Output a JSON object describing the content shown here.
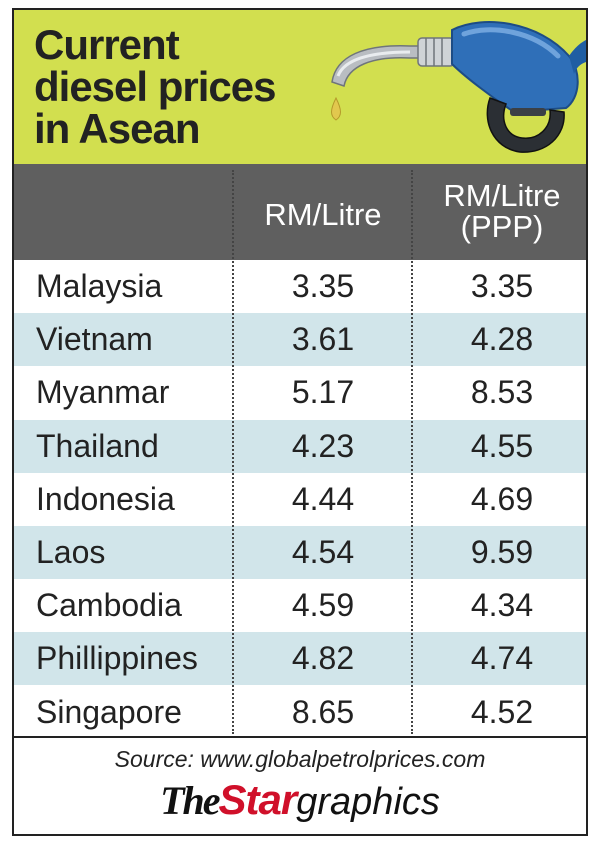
{
  "title_lines": [
    "Current",
    "diesel prices",
    "in Asean"
  ],
  "colors": {
    "header_bg": "#d2df4f",
    "column_header_bg": "#5f5f5f",
    "alt_row_bg": "#d1e5ea",
    "nozzle_blue": "#2f6fb8",
    "brand_red": "#d0102a"
  },
  "icons": [
    "fuel-nozzle-icon"
  ],
  "chart_data": {
    "type": "table",
    "title": "Current diesel prices in Asean",
    "columns": [
      "",
      "RM/Litre",
      "RM/Litre (PPP)"
    ],
    "column_header_lines": {
      "c1": [
        "RM/Litre"
      ],
      "c2": [
        "RM/Litre",
        "(PPP)"
      ]
    },
    "rows": [
      [
        "Malaysia",
        "3.35",
        "3.35"
      ],
      [
        "Vietnam",
        "3.61",
        "4.28"
      ],
      [
        "Myanmar",
        "5.17",
        "8.53"
      ],
      [
        "Thailand",
        "4.23",
        "4.55"
      ],
      [
        "Indonesia",
        "4.44",
        "4.69"
      ],
      [
        "Laos",
        "4.54",
        "9.59"
      ],
      [
        "Cambodia",
        "4.59",
        "4.34"
      ],
      [
        "Phillippines",
        "4.82",
        "4.74"
      ],
      [
        "Singapore",
        "8.65",
        "4.52"
      ]
    ]
  },
  "footer": {
    "source": "Source: www.globalpetrolprices.com",
    "brand_the": "The",
    "brand_star": "Star",
    "brand_graphics": "graphics"
  }
}
